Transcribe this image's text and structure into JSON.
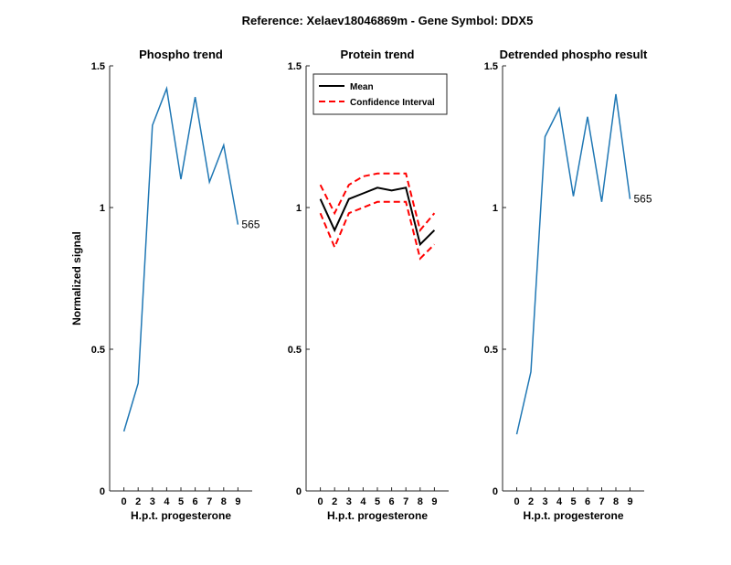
{
  "figure_title": "Reference:  Xelaev18046869m - Gene Symbol:  DDX5",
  "chart_data": [
    {
      "type": "line",
      "title": "Phospho trend",
      "xlabel": "H.p.t. progesterone",
      "ylabel": "Normalized signal",
      "categories": [
        "0",
        "2",
        "3",
        "4",
        "5",
        "6",
        "7",
        "8",
        "9"
      ],
      "ylim": [
        0,
        1.5
      ],
      "yticks": [
        "0",
        "0.5",
        "1",
        "1.5"
      ],
      "grid": false,
      "series": [
        {
          "values": [
            0.21,
            0.38,
            1.29,
            1.42,
            1.1,
            1.39,
            1.09,
            1.22,
            0.94
          ],
          "color": "#1f77b4",
          "end_label": "565"
        }
      ]
    },
    {
      "type": "line",
      "title": "Protein trend",
      "xlabel": "H.p.t. progesterone",
      "ylabel": "",
      "categories": [
        "0",
        "2",
        "3",
        "4",
        "5",
        "6",
        "7",
        "8",
        "9"
      ],
      "ylim": [
        0,
        1.5
      ],
      "yticks": [
        "0",
        "0.5",
        "1",
        "1.5"
      ],
      "grid": false,
      "legend": "top-left",
      "series": [
        {
          "name": "Mean",
          "values": [
            1.03,
            0.92,
            1.03,
            1.05,
            1.07,
            1.06,
            1.07,
            0.87,
            0.92
          ],
          "color": "#000000",
          "style": "solid"
        },
        {
          "name": "Confidence Interval",
          "values": [
            1.08,
            0.98,
            1.08,
            1.11,
            1.12,
            1.12,
            1.12,
            0.92,
            0.98
          ],
          "color": "#ff0000",
          "style": "dashed"
        },
        {
          "name": "Confidence Interval",
          "values": [
            0.98,
            0.86,
            0.98,
            1.0,
            1.02,
            1.02,
            1.02,
            0.82,
            0.87
          ],
          "color": "#ff0000",
          "style": "dashed",
          "in_legend": false
        }
      ]
    },
    {
      "type": "line",
      "title": "Detrended phospho result",
      "xlabel": "H.p.t. progesterone",
      "ylabel": "",
      "categories": [
        "0",
        "2",
        "3",
        "4",
        "5",
        "6",
        "7",
        "8",
        "9"
      ],
      "ylim": [
        0,
        1.5
      ],
      "yticks": [
        "0",
        "0.5",
        "1",
        "1.5"
      ],
      "grid": false,
      "series": [
        {
          "values": [
            0.2,
            0.42,
            1.25,
            1.35,
            1.04,
            1.32,
            1.02,
            1.4,
            1.03
          ],
          "color": "#1f77b4",
          "end_label": "565"
        }
      ]
    }
  ]
}
